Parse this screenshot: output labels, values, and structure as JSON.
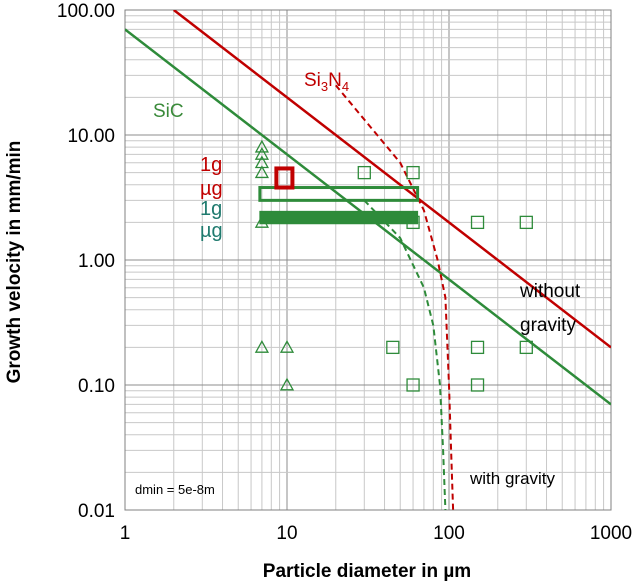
{
  "chart_data": {
    "type": "scatter",
    "xlabel": "Particle diameter in µm",
    "ylabel": "Growth velocity in mm/min",
    "xscale": "log",
    "yscale": "log",
    "xlim": [
      1,
      1000
    ],
    "ylim": [
      0.01,
      100
    ],
    "grid": true,
    "x_ticks": [
      {
        "value": 1,
        "label": "1"
      },
      {
        "value": 10,
        "label": "10"
      },
      {
        "value": 100,
        "label": "100"
      },
      {
        "value": 1000,
        "label": "1000"
      }
    ],
    "y_ticks": [
      {
        "value": 0.01,
        "label": "0.01"
      },
      {
        "value": 0.1,
        "label": "0.10"
      },
      {
        "value": 1,
        "label": "1.00"
      },
      {
        "value": 10,
        "label": "10.00"
      },
      {
        "value": 100,
        "label": "100.00"
      }
    ],
    "colors": {
      "si3n4": "#c00000",
      "sic": "#2e8b3a",
      "sic_label": "#3a8a3a",
      "teal": "#1f7a6e",
      "grid": "#c8c8c8"
    },
    "lines": [
      {
        "id": "si3n4-without-gravity",
        "color": "#c00000",
        "style": "solid",
        "points": [
          [
            2,
            100
          ],
          [
            1000,
            0.2
          ]
        ]
      },
      {
        "id": "sic-without-gravity",
        "color": "#2e8b3a",
        "style": "solid",
        "points": [
          [
            1,
            70
          ],
          [
            1000,
            0.07
          ]
        ]
      },
      {
        "id": "si3n4-with-gravity",
        "color": "#c00000",
        "style": "dashed",
        "points": [
          [
            20,
            25
          ],
          [
            50,
            6
          ],
          [
            70,
            2.5
          ],
          [
            85,
            1
          ],
          [
            95,
            0.5
          ],
          [
            100,
            0.1
          ],
          [
            103,
            0.03
          ],
          [
            106,
            0.01
          ]
        ]
      },
      {
        "id": "sic-with-gravity",
        "color": "#2e8b3a",
        "style": "dashed",
        "points": [
          [
            30,
            3
          ],
          [
            50,
            1.5
          ],
          [
            70,
            0.6
          ],
          [
            80,
            0.3
          ],
          [
            88,
            0.1
          ],
          [
            92,
            0.03
          ],
          [
            95,
            0.01
          ]
        ]
      }
    ],
    "triangles": [
      [
        7,
        8
      ],
      [
        7,
        7
      ],
      [
        7,
        6
      ],
      [
        7,
        5
      ],
      [
        7,
        2
      ],
      [
        7,
        0.2
      ],
      [
        10,
        0.2
      ],
      [
        10,
        0.1
      ]
    ],
    "squares": [
      [
        30,
        5
      ],
      [
        60,
        5
      ],
      [
        60,
        2
      ],
      [
        45,
        0.2
      ],
      [
        60,
        0.1
      ],
      [
        150,
        2
      ],
      [
        300,
        2
      ],
      [
        150,
        0.2
      ],
      [
        300,
        0.2
      ],
      [
        150,
        0.1
      ]
    ],
    "bars": [
      {
        "id": "sic-1g",
        "x": [
          6.8,
          64
        ],
        "y": [
          3.0,
          3.8
        ],
        "style": "outline",
        "color": "#2e8b3a"
      },
      {
        "id": "sic-ug",
        "x": [
          6.8,
          64
        ],
        "y": [
          1.95,
          2.45
        ],
        "style": "filled",
        "color": "#2e8b3a"
      },
      {
        "id": "si3n4-marker",
        "x": [
          8.6,
          10.8
        ],
        "y": [
          3.8,
          5.4
        ],
        "style": "outline",
        "color": "#c00000"
      }
    ],
    "annotations": {
      "si3n4": "Si3N4",
      "sic": "SiC",
      "red_1g": "1g",
      "red_ug": "µg",
      "teal_1g": "1g",
      "teal_ug": "µg",
      "without_gravity_1": "without",
      "without_gravity_2": "gravity",
      "with_gravity": "with gravity",
      "dmin": "dmin = 5e-8m"
    }
  }
}
